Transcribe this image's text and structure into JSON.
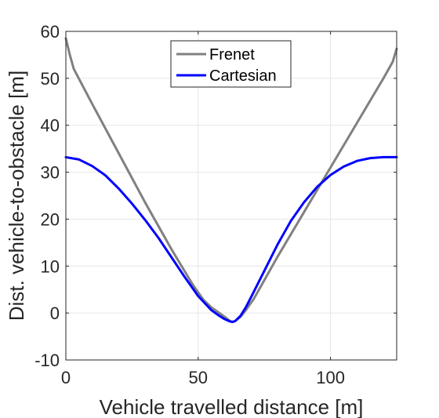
{
  "chart_data": {
    "type": "line",
    "xlabel": "Vehicle travelled distance [m]",
    "ylabel": "Dist. vehicle-to-obstacle [m]",
    "xlim": [
      0,
      125
    ],
    "ylim": [
      -10,
      60
    ],
    "xticks": [
      0,
      50,
      100
    ],
    "yticks": [
      -10,
      0,
      10,
      20,
      30,
      40,
      50,
      60
    ],
    "grid": true,
    "legend": {
      "placement": "top-center",
      "entries": [
        "Frenet",
        "Cartesian"
      ]
    },
    "series": [
      {
        "name": "Frenet",
        "color": "#808080",
        "x": [
          0,
          1.5,
          3,
          10,
          20,
          30,
          40,
          48,
          52,
          55,
          58,
          60,
          62,
          63,
          64,
          66,
          68,
          71,
          75,
          80,
          90,
          100,
          110,
          120,
          123.5,
          125
        ],
        "y": [
          58.5,
          55,
          52,
          44.5,
          34,
          23.5,
          13.5,
          6,
          2.8,
          1.2,
          0,
          -0.8,
          -1.7,
          -1.9,
          -1.7,
          -0.8,
          0.6,
          3,
          7,
          12,
          21.5,
          31,
          40.5,
          50,
          53.5,
          56.3
        ]
      },
      {
        "name": "Cartesian",
        "color": "#0000ff",
        "x": [
          0,
          5,
          10,
          15,
          20,
          25,
          30,
          35,
          40,
          45,
          50,
          55,
          58,
          60,
          62,
          63,
          64,
          66,
          68,
          70,
          75,
          80,
          85,
          90,
          95,
          100,
          105,
          110,
          115,
          120,
          125
        ],
        "y": [
          33.2,
          32.7,
          31.3,
          29.3,
          26.5,
          23.3,
          19.8,
          16,
          11.8,
          7.6,
          3.6,
          0.6,
          -0.6,
          -1.3,
          -1.8,
          -1.9,
          -1.7,
          -0.6,
          1.2,
          3.4,
          9,
          14.6,
          19.6,
          23.6,
          26.9,
          29.4,
          31.2,
          32.4,
          33.0,
          33.2,
          33.2
        ]
      }
    ]
  }
}
